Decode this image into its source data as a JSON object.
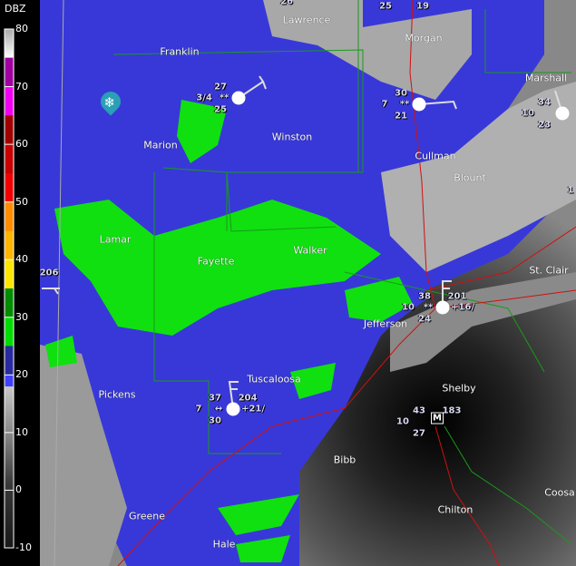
{
  "legend": {
    "title": "DBZ",
    "ticks": [
      "80",
      "70",
      "60",
      "50",
      "40",
      "30",
      "20",
      "10",
      "0",
      "-10"
    ],
    "color_stops": [
      {
        "from": 75,
        "to": 80,
        "color": "#e0e0e0"
      },
      {
        "from": 70,
        "to": 75,
        "color": "#a000a0"
      },
      {
        "from": 65,
        "to": 70,
        "color": "#f000f0"
      },
      {
        "from": 60,
        "to": 65,
        "color": "#a00000"
      },
      {
        "from": 55,
        "to": 60,
        "color": "#c80000"
      },
      {
        "from": 50,
        "to": 55,
        "color": "#f00000"
      },
      {
        "from": 45,
        "to": 50,
        "color": "#ff8c00"
      },
      {
        "from": 40,
        "to": 45,
        "color": "#ffb400"
      },
      {
        "from": 35,
        "to": 40,
        "color": "#ffe600"
      },
      {
        "from": 30,
        "to": 35,
        "color": "#008c00"
      },
      {
        "from": 25,
        "to": 30,
        "color": "#00dc00"
      },
      {
        "from": 20,
        "to": 25,
        "color": "#2a2aa0"
      },
      {
        "from": 18,
        "to": 20,
        "color": "#4040ff"
      },
      {
        "from": -10,
        "to": 18,
        "color": "gray-ramp"
      }
    ]
  },
  "counties": [
    "Lawrence",
    "Franklin",
    "Morgan",
    "Marshall",
    "Marion",
    "Winston",
    "Cullman",
    "Blount",
    "Lamar",
    "Fayette",
    "Walker",
    "St. Clair",
    "Jefferson",
    "Pickens",
    "Tuscaloosa",
    "Shelby",
    "Bibb",
    "Chilton",
    "Coosa",
    "Greene",
    "Hale"
  ],
  "stations": [
    {
      "temp": "27",
      "vis": "3/4",
      "wx": "**",
      "dew": "25"
    },
    {
      "temp": "30",
      "vis": "7",
      "wx": "**",
      "dew": "21"
    },
    {
      "temp": "34",
      "vis": "10",
      "dew": "23"
    },
    {
      "temp": "38",
      "pressure": "201",
      "vis": "10",
      "wx": "**",
      "tendency": "+16/",
      "dew": "24"
    },
    {
      "temp": "37",
      "pressure": "204",
      "vis": "7",
      "wx": "↔",
      "tendency": "+21/",
      "dew": "30"
    },
    {
      "temp": "43",
      "pressure": "183",
      "vis": "10",
      "dew": "27",
      "radar_site": "M"
    }
  ],
  "edge_values": [
    "26",
    "25",
    "19",
    "206",
    "1"
  ],
  "icons": {
    "snow_marker": "snowflake-icon"
  }
}
